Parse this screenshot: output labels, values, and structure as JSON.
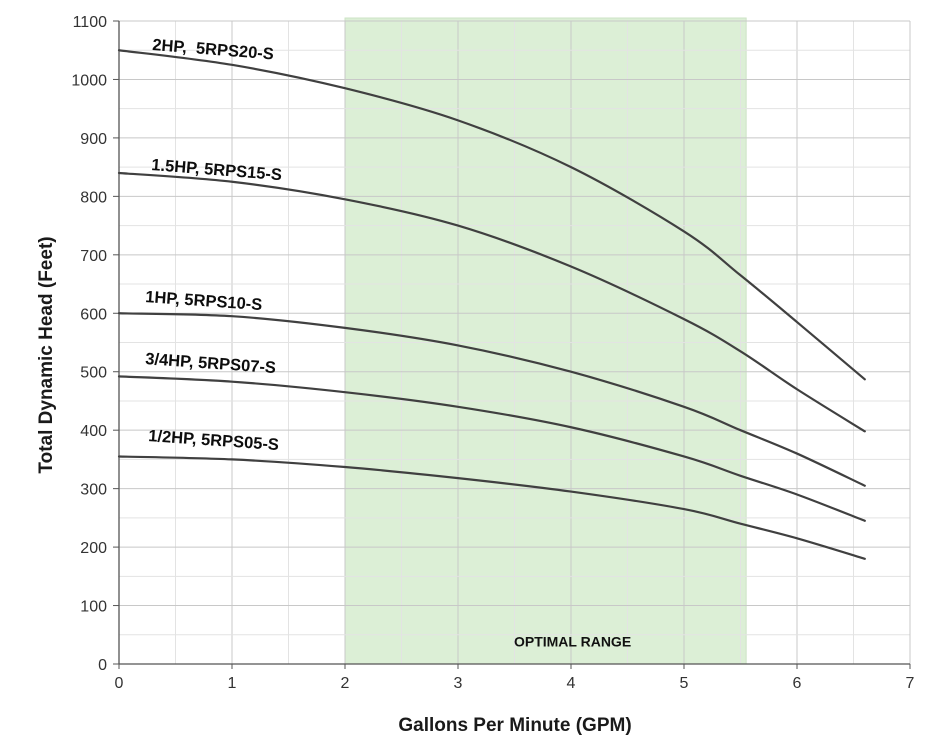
{
  "chart_data": {
    "type": "line",
    "title": "",
    "xlabel": "Gallons Per Minute (GPM)",
    "ylabel": "Total Dynamic Head (Feet)",
    "xlim": [
      0,
      7
    ],
    "ylim": [
      0,
      1100
    ],
    "x_ticks": [
      "0",
      "1",
      "2",
      "3",
      "4",
      "5",
      "6",
      "7"
    ],
    "y_ticks": [
      "0",
      "100",
      "200",
      "300",
      "400",
      "500",
      "600",
      "700",
      "800",
      "900",
      "1000",
      "1100"
    ],
    "grid": true,
    "minor_grid": true,
    "optimal_range": {
      "label": "OPTIMAL RANGE",
      "x": [
        2.0,
        5.55
      ],
      "color": "#dcefd6"
    },
    "line_color": "#404040",
    "series": [
      {
        "name": "2HP,  5RPS20-S",
        "x": [
          0,
          1,
          2,
          3,
          4,
          5,
          5.5,
          6,
          6.6
        ],
        "values": [
          1050,
          1025,
          985,
          930,
          850,
          740,
          665,
          585,
          487
        ]
      },
      {
        "name": "1.5HP, 5RPS15-S",
        "x": [
          0,
          1,
          2,
          3,
          4,
          5,
          5.5,
          6,
          6.6
        ],
        "values": [
          840,
          825,
          795,
          750,
          680,
          590,
          535,
          470,
          398
        ]
      },
      {
        "name": "1HP, 5RPS10-S",
        "x": [
          0,
          1,
          2,
          3,
          4,
          5,
          5.5,
          6,
          6.6
        ],
        "values": [
          600,
          595,
          575,
          545,
          500,
          440,
          400,
          360,
          305
        ]
      },
      {
        "name": "3/4HP, 5RPS07-S",
        "x": [
          0,
          1,
          2,
          3,
          4,
          5,
          5.5,
          6,
          6.6
        ],
        "values": [
          492,
          483,
          465,
          440,
          405,
          355,
          322,
          290,
          245
        ]
      },
      {
        "name": "1/2HP, 5RPS05-S",
        "x": [
          0,
          1,
          2,
          3,
          4,
          5,
          5.5,
          6,
          6.6
        ],
        "values": [
          355,
          350,
          337,
          318,
          295,
          265,
          240,
          215,
          180
        ]
      }
    ]
  }
}
